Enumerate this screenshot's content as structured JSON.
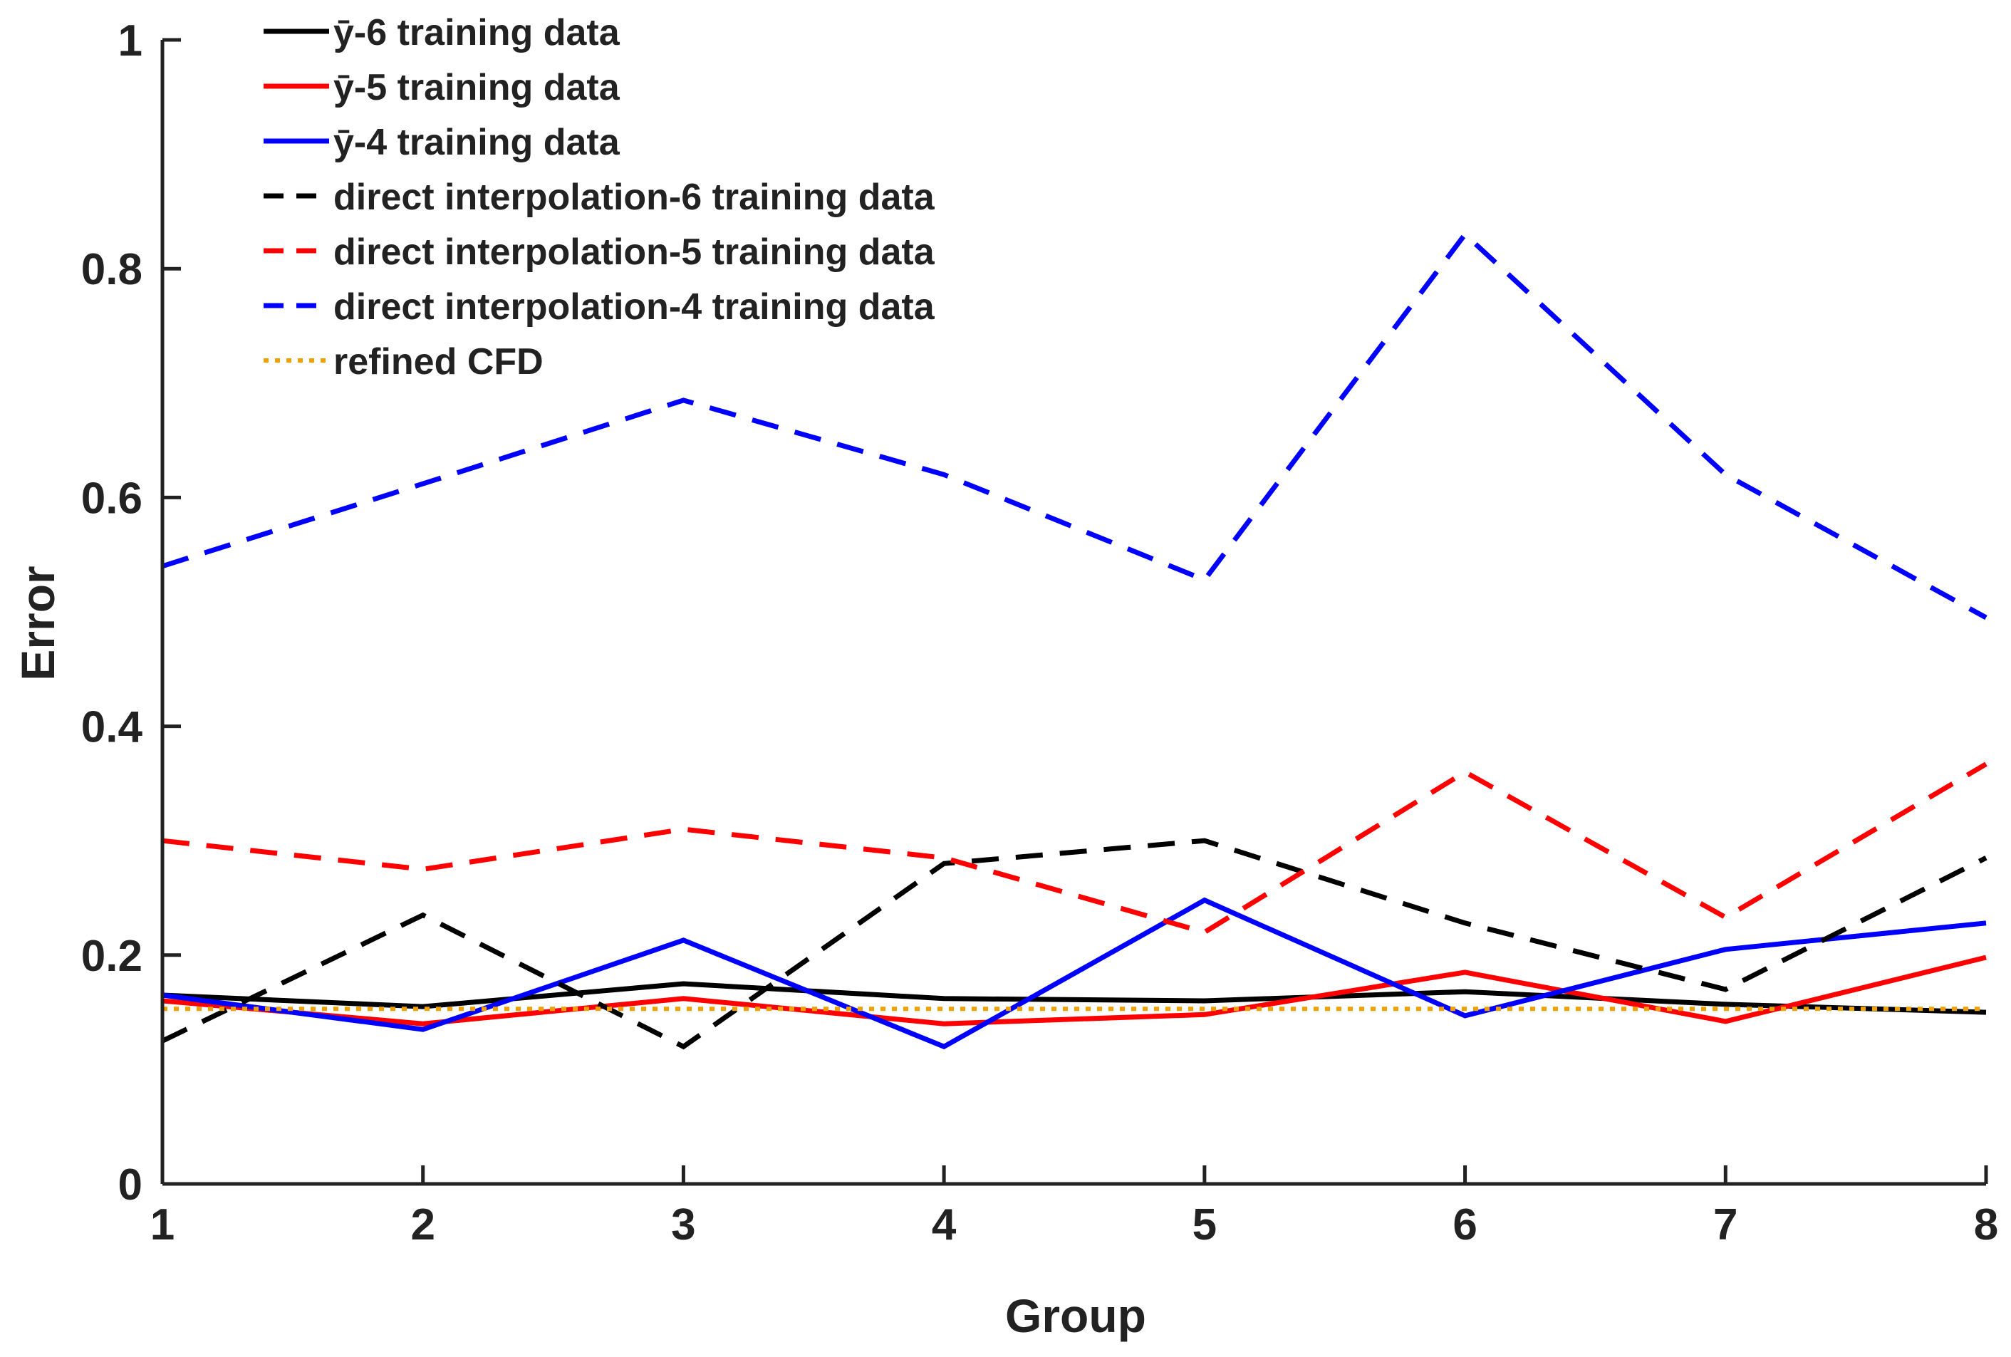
{
  "chart_data": {
    "type": "line",
    "title": "",
    "xlabel": "Group",
    "ylabel": "Error",
    "xlim": [
      1,
      8
    ],
    "ylim": [
      0,
      1
    ],
    "xticks": [
      1,
      2,
      3,
      4,
      5,
      6,
      7,
      8
    ],
    "yticks": [
      0,
      0.2,
      0.4,
      0.6,
      0.8,
      1
    ],
    "ytick_labels": [
      "0",
      "0.2",
      "0.4",
      "0.6",
      "0.8",
      "1"
    ],
    "grid": false,
    "legend_position": "top-left",
    "x": [
      1,
      2,
      3,
      4,
      5,
      6,
      7,
      8
    ],
    "series": [
      {
        "name": "ȳ-6 training data",
        "color": "#000000",
        "style": "solid",
        "values": [
          0.165,
          0.155,
          0.175,
          0.162,
          0.16,
          0.168,
          0.157,
          0.15
        ]
      },
      {
        "name": "ȳ-5 training data",
        "color": "#ff0000",
        "style": "solid",
        "values": [
          0.16,
          0.14,
          0.162,
          0.14,
          0.148,
          0.185,
          0.142,
          0.198
        ]
      },
      {
        "name": "ȳ-4 training data",
        "color": "#0000ff",
        "style": "solid",
        "values": [
          0.165,
          0.135,
          0.213,
          0.12,
          0.248,
          0.147,
          0.205,
          0.228
        ]
      },
      {
        "name": "direct interpolation-6 training data",
        "color": "#000000",
        "style": "dashed",
        "values": [
          0.125,
          0.235,
          0.12,
          0.28,
          0.3,
          0.228,
          0.17,
          0.285
        ]
      },
      {
        "name": "direct interpolation-5 training data",
        "color": "#ff0000",
        "style": "dashed",
        "values": [
          0.3,
          0.275,
          0.31,
          0.285,
          0.22,
          0.36,
          0.233,
          0.367
        ]
      },
      {
        "name": "direct interpolation-4 training data",
        "color": "#0000ff",
        "style": "dashed",
        "values": [
          0.54,
          0.612,
          0.685,
          0.62,
          0.528,
          0.83,
          0.62,
          0.495
        ]
      },
      {
        "name": "refined CFD",
        "color": "#f0a000",
        "style": "dotted",
        "values": [
          0.153,
          0.153,
          0.153,
          0.153,
          0.153,
          0.153,
          0.153,
          0.153
        ]
      }
    ]
  }
}
